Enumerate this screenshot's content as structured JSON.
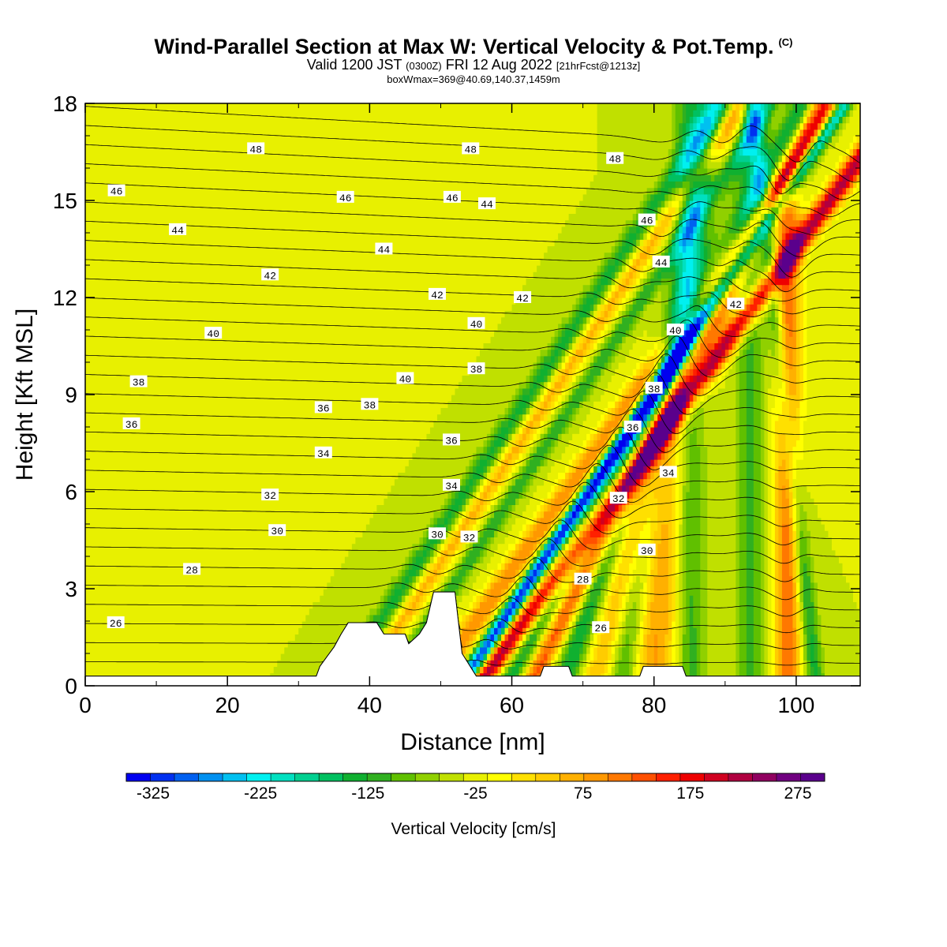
{
  "header": {
    "title": "Wind-Parallel Section at Max W: Vertical Velocity & Pot.Temp.",
    "copyright": "(C)",
    "valid_prefix": "Valid 1200 JST",
    "valid_utc": "(0300Z)",
    "valid_date": "FRI 12 Aug 2022",
    "valid_fcst": "[21hrFcst@1213z]",
    "box_info": "boxWmax=369@40.69,140.37,1459m"
  },
  "chart_data": {
    "type": "heatmap",
    "title": "Wind-Parallel Section at Max W: Vertical Velocity & Pot.Temp.",
    "xlabel": "Distance [nm]",
    "ylabel": "Height [Kft MSL]",
    "xlim": [
      0,
      109
    ],
    "ylim": [
      0,
      18
    ],
    "x_ticks": [
      0,
      20,
      40,
      60,
      80,
      100
    ],
    "y_ticks": [
      0,
      3,
      6,
      9,
      12,
      15,
      18
    ],
    "colorbar": {
      "label": "Vertical Velocity [cm/s]",
      "min": -350,
      "max": 300,
      "step": 25,
      "tick_values": [
        -325,
        -225,
        -125,
        -25,
        75,
        175,
        275
      ],
      "tick_labels": [
        "-325",
        "-225",
        "-125",
        "-25",
        "75",
        "175",
        "275"
      ],
      "colors": [
        "#0000f0",
        "#0030f0",
        "#0060f0",
        "#0090f0",
        "#00c0f0",
        "#00f0f0",
        "#00e0c0",
        "#00d090",
        "#00c060",
        "#10b030",
        "#30b020",
        "#60c000",
        "#90d000",
        "#c0e000",
        "#e8f000",
        "#ffff00",
        "#ffe000",
        "#ffcc00",
        "#ffb000",
        "#ff9800",
        "#ff7800",
        "#ff5000",
        "#ff2000",
        "#ee0000",
        "#d00020",
        "#b00040",
        "#900060",
        "#700080",
        "#5a008c"
      ]
    },
    "theta_contours": {
      "levels": [
        20,
        21,
        22,
        23,
        24,
        25,
        26,
        27,
        28,
        29,
        30,
        31,
        32,
        33,
        34,
        35,
        36,
        37,
        38,
        39,
        40,
        41,
        42,
        43,
        44,
        45,
        46,
        47,
        48,
        49,
        50
      ],
      "labels": [
        {
          "text": "48",
          "x": 24,
          "y": 16.6
        },
        {
          "text": "46",
          "x": 4.4,
          "y": 15.3
        },
        {
          "text": "44",
          "x": 13,
          "y": 14.1
        },
        {
          "text": "42",
          "x": 26,
          "y": 12.7
        },
        {
          "text": "40",
          "x": 18,
          "y": 10.9
        },
        {
          "text": "38",
          "x": 7.5,
          "y": 9.4
        },
        {
          "text": "36",
          "x": 6.5,
          "y": 8.1
        },
        {
          "text": "36",
          "x": 33.5,
          "y": 8.6
        },
        {
          "text": "38",
          "x": 40,
          "y": 8.7
        },
        {
          "text": "34",
          "x": 33.5,
          "y": 7.2
        },
        {
          "text": "32",
          "x": 26,
          "y": 5.9
        },
        {
          "text": "30",
          "x": 27,
          "y": 4.8
        },
        {
          "text": "28",
          "x": 15,
          "y": 3.6
        },
        {
          "text": "26",
          "x": 4.3,
          "y": 1.95
        },
        {
          "text": "46",
          "x": 36.6,
          "y": 15.1
        },
        {
          "text": "44",
          "x": 42,
          "y": 13.5
        },
        {
          "text": "40",
          "x": 45,
          "y": 9.5
        },
        {
          "text": "42",
          "x": 49.5,
          "y": 12.1
        },
        {
          "text": "46",
          "x": 51.6,
          "y": 15.1
        },
        {
          "text": "48",
          "x": 54.2,
          "y": 16.6
        },
        {
          "text": "44",
          "x": 56.5,
          "y": 14.9
        },
        {
          "text": "40",
          "x": 55,
          "y": 11.2
        },
        {
          "text": "38",
          "x": 55,
          "y": 9.8
        },
        {
          "text": "36",
          "x": 51.5,
          "y": 7.6
        },
        {
          "text": "34",
          "x": 51.5,
          "y": 6.2
        },
        {
          "text": "30",
          "x": 49.5,
          "y": 4.7
        },
        {
          "text": "32",
          "x": 54,
          "y": 4.6
        },
        {
          "text": "42",
          "x": 61.5,
          "y": 12
        },
        {
          "text": "48",
          "x": 74.5,
          "y": 16.3
        },
        {
          "text": "46",
          "x": 79,
          "y": 14.4
        },
        {
          "text": "44",
          "x": 81,
          "y": 13.1
        },
        {
          "text": "40",
          "x": 83,
          "y": 11
        },
        {
          "text": "42",
          "x": 91.5,
          "y": 11.8
        },
        {
          "text": "38",
          "x": 80,
          "y": 9.2
        },
        {
          "text": "36",
          "x": 77,
          "y": 8.0
        },
        {
          "text": "34",
          "x": 82,
          "y": 6.6
        },
        {
          "text": "32",
          "x": 75,
          "y": 5.8
        },
        {
          "text": "30",
          "x": 79,
          "y": 4.2
        },
        {
          "text": "28",
          "x": 70,
          "y": 3.3
        },
        {
          "text": "26",
          "x": 72.5,
          "y": 1.8
        }
      ]
    },
    "vv_features": [
      {
        "value": -110,
        "xb": 35.5,
        "lean": 0.3,
        "w": 1.8,
        "ztop": 18
      },
      {
        "value": 110,
        "xb": 38.5,
        "lean": 0.3,
        "w": 1.6,
        "ztop": 18
      },
      {
        "value": -95,
        "xb": 42.5,
        "lean": 0.3,
        "w": 1.4,
        "ztop": 18
      },
      {
        "value": 150,
        "xb": 48.6,
        "lean": 0.32,
        "w": 2.0,
        "ztop": 18
      },
      {
        "value": -330,
        "xb": 52.8,
        "lean": 0.3,
        "w": 1.3,
        "ztop": 18
      },
      {
        "value": 290,
        "xb": 55.2,
        "lean": 0.33,
        "w": 1.8,
        "ztop": 18
      },
      {
        "value": -120,
        "xb": 59.4,
        "lean": 0.23,
        "w": 1.9,
        "ztop": 18
      },
      {
        "value": 190,
        "xb": 62.4,
        "lean": 0.23,
        "w": 1.7,
        "ztop": 18
      },
      {
        "value": -125,
        "xb": 67.3,
        "lean": 0.15,
        "w": 1.9,
        "ztop": 18
      },
      {
        "value": 95,
        "xb": 71.5,
        "lean": 0.12,
        "w": 2.3,
        "ztop": 18
      },
      {
        "value": -110,
        "xb": 75.5,
        "lean": 0.07,
        "w": 2.0,
        "ztop": 18
      },
      {
        "value": 130,
        "xb": 80.0,
        "lean": 0.02,
        "w": 3.6,
        "ztop": 8
      },
      {
        "value": -100,
        "xb": 85.0,
        "lean": 0.0,
        "w": 2.2,
        "ztop": 18
      },
      {
        "value": -80,
        "xb": 93.5,
        "lean": 0.0,
        "w": 2.0,
        "ztop": 18
      },
      {
        "value": 175,
        "xb": 98.8,
        "lean": 0.0,
        "w": 1.8,
        "ztop": 14
      },
      {
        "value": -110,
        "xb": 102.8,
        "lean": -0.05,
        "w": 1.3,
        "ztop": 18
      }
    ],
    "terrain": [
      [
        0,
        0.3
      ],
      [
        32.5,
        0.3
      ],
      [
        33,
        0.6
      ],
      [
        34,
        0.9
      ],
      [
        35,
        1.2
      ],
      [
        36,
        1.6
      ],
      [
        37,
        1.95
      ],
      [
        41,
        1.95
      ],
      [
        42,
        1.6
      ],
      [
        45,
        1.6
      ],
      [
        45.5,
        1.3
      ],
      [
        47,
        1.6
      ],
      [
        48,
        1.95
      ],
      [
        49,
        2.9
      ],
      [
        52,
        2.9
      ],
      [
        53,
        1.0
      ],
      [
        55,
        0.3
      ],
      [
        64,
        0.3
      ],
      [
        64.5,
        0.6
      ],
      [
        68,
        0.6
      ],
      [
        68.5,
        0.3
      ],
      [
        78,
        0.3
      ],
      [
        78.5,
        0.6
      ],
      [
        84,
        0.6
      ],
      [
        84.5,
        0.3
      ],
      [
        109,
        0.3
      ]
    ]
  }
}
